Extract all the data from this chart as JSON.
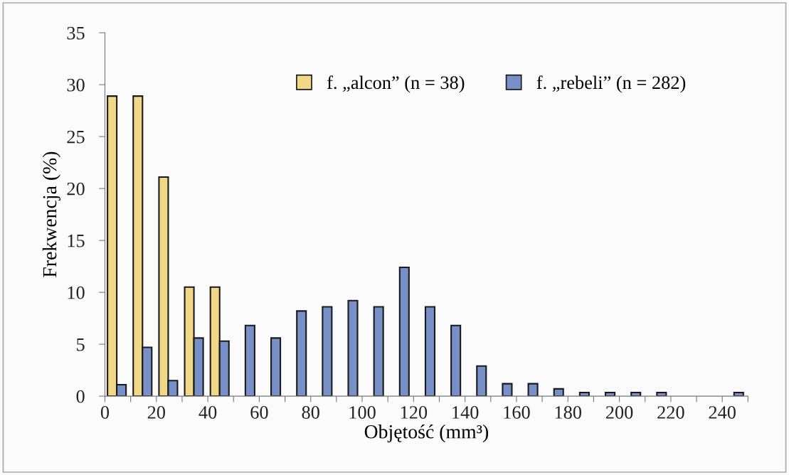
{
  "chart_data": {
    "type": "bar",
    "xlabel": "Objętość (mm³)",
    "ylabel": "Frekwencja (%)",
    "x": [
      5,
      15,
      25,
      35,
      45,
      55,
      65,
      75,
      85,
      95,
      105,
      115,
      125,
      135,
      145,
      155,
      165,
      175,
      185,
      195,
      205,
      215,
      225,
      235,
      245
    ],
    "series": [
      {
        "name": "f. „alcon” (n = 38)",
        "color": "#f0d888",
        "values": [
          28.9,
          28.9,
          21.1,
          10.5,
          10.5,
          null,
          null,
          null,
          null,
          null,
          null,
          null,
          null,
          null,
          null,
          null,
          null,
          null,
          null,
          null,
          null,
          null,
          null,
          null,
          null
        ]
      },
      {
        "name": "f. „rebeli” (n = 282)",
        "color": "#7890c8",
        "values": [
          1.1,
          4.7,
          1.5,
          5.6,
          5.3,
          6.8,
          5.6,
          8.2,
          8.6,
          9.2,
          8.6,
          12.4,
          8.6,
          6.8,
          2.9,
          1.2,
          1.2,
          0.7,
          0.35,
          0.35,
          0.35,
          0.35,
          null,
          null,
          0.35
        ]
      }
    ],
    "xlim": [
      0,
      250
    ],
    "xticks": [
      0,
      {
        "value": 10,
        "label": null
      },
      20,
      {
        "value": 30,
        "label": null
      },
      40,
      {
        "value": 50,
        "label": null
      },
      60,
      {
        "value": 70,
        "label": null
      },
      80,
      {
        "value": 90,
        "label": null
      },
      100,
      {
        "value": 110,
        "label": null
      },
      120,
      {
        "value": 130,
        "label": null
      },
      140,
      {
        "value": 150,
        "label": null
      },
      160,
      {
        "value": 170,
        "label": null
      },
      180,
      {
        "value": 190,
        "label": null
      },
      200,
      {
        "value": 210,
        "label": null
      },
      220,
      {
        "value": 230,
        "label": null
      },
      240,
      {
        "value": 250,
        "label": null
      }
    ],
    "ylim": [
      0,
      35
    ],
    "yticks": [
      0,
      5,
      10,
      15,
      20,
      25,
      30,
      35
    ],
    "grid": false,
    "legend": "top right"
  }
}
